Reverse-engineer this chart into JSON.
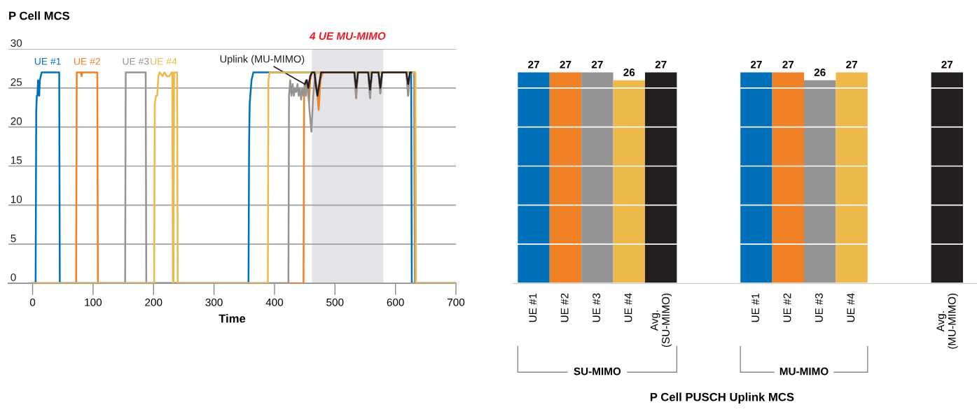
{
  "chart_data": [
    {
      "type": "line",
      "title": "P Cell MCS",
      "xlabel": "Time",
      "xlim": [
        -40,
        700
      ],
      "xticks": [
        0,
        100,
        200,
        300,
        400,
        500,
        600,
        700
      ],
      "ylim": [
        0,
        30
      ],
      "yticks": [
        0,
        5,
        10,
        15,
        20,
        25,
        30
      ],
      "grid": "y",
      "marker": "none",
      "line_style": "solid",
      "bands": [
        {
          "axis": "x",
          "from": 462,
          "to": 580,
          "label": "4 UE MU-MIMO",
          "color": "#e3e3e8"
        }
      ],
      "series": [
        {
          "name": "UE #1",
          "color": "#0070ba",
          "x": [
            0,
            5,
            6,
            7,
            8,
            9,
            10,
            11,
            12,
            15,
            30,
            44,
            45,
            357,
            358,
            359,
            362,
            365,
            626,
            627,
            700
          ],
          "values": [
            0,
            0,
            22,
            24,
            24,
            26,
            25,
            24,
            26,
            27,
            27,
            27,
            0,
            0,
            18,
            23,
            26,
            27,
            27,
            0,
            0
          ]
        },
        {
          "name": "UE #2",
          "color": "#f08127",
          "x": [
            0,
            72,
            73,
            80,
            81,
            82,
            107,
            108,
            448,
            449,
            452,
            455,
            457,
            459,
            462,
            466,
            470,
            473,
            476,
            480,
            532,
            535,
            538,
            555,
            558,
            561,
            572,
            575,
            578,
            618,
            621,
            624,
            631,
            632,
            700
          ],
          "values": [
            0,
            0,
            27,
            27,
            26.5,
            27,
            27,
            0,
            0,
            24,
            26,
            25,
            23.1,
            26,
            27,
            27,
            25,
            22.2,
            26,
            27,
            27,
            23.7,
            27,
            27,
            23.7,
            27,
            27,
            24.3,
            27,
            27,
            24,
            27,
            27,
            0,
            0
          ]
        },
        {
          "name": "UE #3",
          "color": "#949494",
          "x": [
            0,
            153,
            154,
            160,
            187,
            188,
            423,
            424,
            426,
            428,
            430,
            432,
            434,
            436,
            438,
            440,
            442,
            444,
            446,
            448,
            450,
            452,
            455,
            458,
            461,
            464,
            468,
            472,
            532,
            535,
            538,
            555,
            558,
            561,
            572,
            575,
            578,
            618,
            621,
            624,
            631,
            632,
            700
          ],
          "values": [
            0,
            0,
            27,
            27,
            27,
            0,
            0,
            24,
            26,
            24,
            25.5,
            24,
            25,
            24.5,
            25.5,
            24,
            25,
            23.5,
            25,
            24,
            25.5,
            24,
            26,
            22,
            19.4,
            24,
            27,
            27,
            27,
            23.7,
            27,
            27,
            23.7,
            27,
            27,
            24.3,
            27,
            27,
            24,
            27,
            27,
            0,
            0
          ]
        },
        {
          "name": "UE #4",
          "color": "#ecb94a",
          "x": [
            0,
            201,
            202,
            204,
            206,
            208,
            210,
            215,
            218,
            222,
            226,
            230,
            231,
            232,
            233,
            234,
            239,
            240,
            389,
            390,
            392,
            633,
            634,
            700
          ],
          "values": [
            0,
            0,
            23,
            24,
            24,
            26.5,
            27,
            26.5,
            27,
            26.5,
            26.5,
            27,
            27,
            0,
            0,
            27,
            27,
            0,
            0,
            26,
            27,
            27,
            0,
            0
          ]
        },
        {
          "name": "Uplink (MU-MIMO)",
          "color": "#231f20",
          "x": [
            450,
            453,
            456,
            459,
            462,
            466,
            469,
            471,
            474,
            477,
            532,
            535,
            538,
            555,
            558,
            561,
            572,
            575,
            578,
            618,
            621,
            624,
            626
          ],
          "values": [
            25.5,
            26,
            25,
            26.5,
            27,
            27,
            25,
            24,
            25.5,
            27,
            27,
            25,
            27,
            27,
            24.8,
            27,
            27,
            25,
            27,
            27,
            25.5,
            27,
            27
          ]
        }
      ]
    },
    {
      "type": "bar",
      "xlabel": "P Cell PUSCH Uplink MCS",
      "categories": [
        "UE #1",
        "UE #2",
        "UE #3",
        "UE #4",
        "Avg.\n(SU-MIMO)",
        null,
        null,
        "UE #1",
        "UE #2",
        "UE #3",
        "UE #4",
        null,
        null,
        "Avg.\n(MU-MIMO)"
      ],
      "values": [
        27,
        27,
        27,
        26,
        27,
        null,
        null,
        27,
        27,
        26,
        27,
        null,
        null,
        27
      ],
      "colors": [
        "#0070ba",
        "#f08127",
        "#949494",
        "#ecb94a",
        "#231f20",
        null,
        null,
        "#0070ba",
        "#f08127",
        "#949494",
        "#ecb94a",
        null,
        null,
        "#231f20"
      ],
      "ylim": [
        0,
        30
      ],
      "yticks": [
        0,
        5,
        10,
        15,
        20,
        25,
        30
      ],
      "tick_labels": "x",
      "grid": "y",
      "data_labels": true,
      "annotations": [
        "SU-MIMO",
        "MU-MIMO"
      ]
    }
  ]
}
